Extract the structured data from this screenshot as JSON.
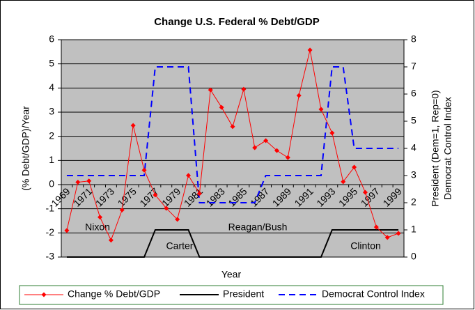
{
  "chart_data": {
    "type": "line",
    "title": "Change U.S. Federal % Debt/GDP",
    "x_label": "Year",
    "y_label": "(% Debt/GDP)/Year",
    "y2_label": [
      "President (Dem=1, Rep=0)",
      "Democrat Control Index"
    ],
    "categories": [
      "1969",
      null,
      "1971",
      null,
      "1973",
      null,
      "1975",
      null,
      "1977",
      null,
      "1979",
      null,
      "1981",
      null,
      "1983",
      null,
      "1985",
      null,
      "1987",
      null,
      "1989",
      null,
      "1991",
      null,
      "1993",
      null,
      "1995",
      null,
      "1997",
      null,
      "1999"
    ],
    "series": [
      {
        "name": "Change % Debt/GDP",
        "color": "#ff0000",
        "axis": "y",
        "marker": "diamond",
        "values": [
          -1.9,
          0.1,
          0.15,
          -1.35,
          -2.3,
          -1.05,
          2.45,
          0.6,
          -0.43,
          -0.98,
          -1.44,
          0.38,
          -0.37,
          3.92,
          3.2,
          2.4,
          3.95,
          1.53,
          1.82,
          1.41,
          1.12,
          3.69,
          5.57,
          3.12,
          2.14,
          0.12,
          0.72,
          -0.32,
          -1.76,
          -2.19,
          -2.02
        ]
      },
      {
        "name": "President",
        "color": "#000000",
        "axis": "y2",
        "dash": "solid",
        "values": [
          0,
          0,
          0,
          0,
          0,
          0,
          0,
          0,
          1,
          1,
          1,
          1,
          0,
          0,
          0,
          0,
          0,
          0,
          0,
          0,
          0,
          0,
          0,
          0,
          1,
          1,
          1,
          1,
          1,
          1,
          1
        ]
      },
      {
        "name": "Democrat Control Index",
        "color": "#0000ff",
        "axis": "y2",
        "dash": "dashed",
        "values": [
          3,
          3,
          3,
          3,
          3,
          3,
          3,
          3,
          7,
          7,
          7,
          7,
          2,
          2,
          2,
          2,
          2,
          2,
          3,
          3,
          3,
          3,
          3,
          3,
          7,
          7,
          4,
          4,
          4,
          4,
          4
        ]
      }
    ],
    "annotations": [
      "Nixon",
      "Carter",
      "Reagan/Bush",
      "Clinton"
    ],
    "ylim": [
      -3,
      6
    ],
    "yticks": [
      -3,
      -2,
      -1,
      0,
      1,
      2,
      3,
      4,
      5,
      6
    ],
    "y2lim": [
      0,
      8
    ],
    "y2ticks": [
      0,
      1,
      2,
      3,
      4,
      5,
      6,
      7,
      8
    ],
    "grid": true,
    "legend": "bottom"
  }
}
